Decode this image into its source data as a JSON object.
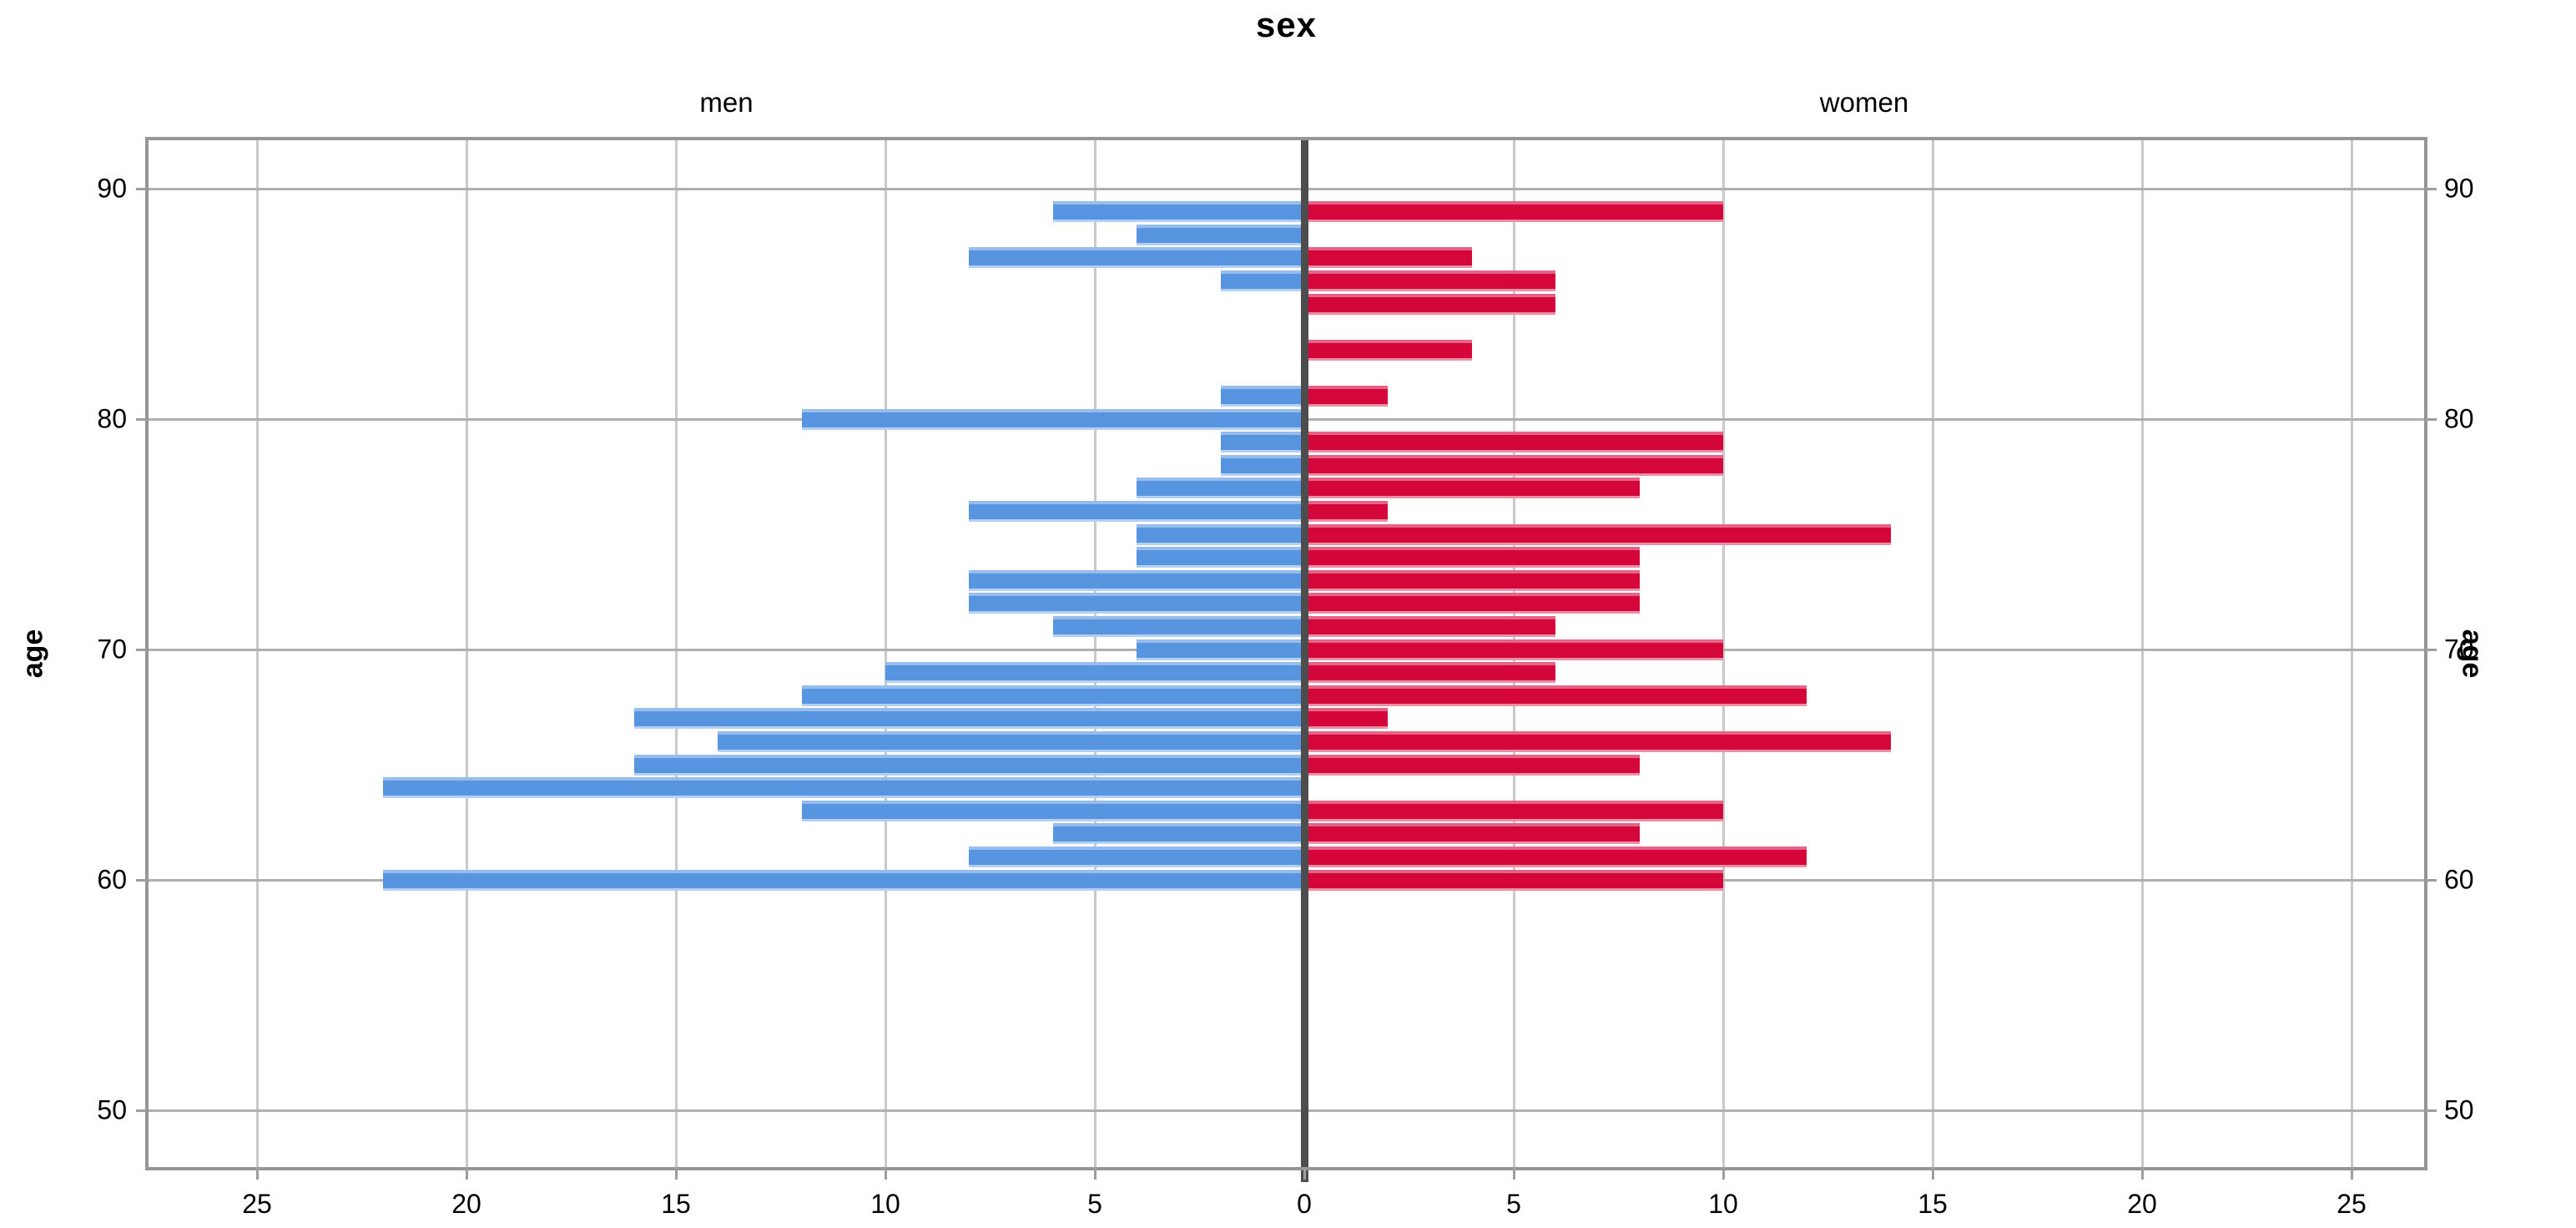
{
  "chart_data": {
    "type": "bar",
    "variant": "population-pyramid",
    "title": "sex",
    "groups": [
      {
        "key": "men",
        "label": "men",
        "color": "#5795E0"
      },
      {
        "key": "women",
        "label": "women",
        "color": "#D5063A"
      }
    ],
    "ylabel_left": "age",
    "ylabel_right": "age",
    "xlabel": "",
    "ages": [
      60,
      61,
      62,
      63,
      64,
      65,
      66,
      67,
      68,
      69,
      70,
      71,
      72,
      73,
      74,
      75,
      76,
      77,
      78,
      79,
      80,
      81,
      82,
      83,
      84,
      85,
      86,
      87,
      88,
      89
    ],
    "series": [
      {
        "name": "men",
        "values": [
          22,
          8,
          6,
          12,
          22,
          16,
          14,
          16,
          12,
          10,
          4,
          6,
          8,
          8,
          4,
          4,
          8,
          4,
          2,
          2,
          12,
          2,
          0,
          0,
          0,
          0,
          2,
          8,
          4,
          6
        ]
      },
      {
        "name": "women",
        "values": [
          10,
          12,
          8,
          10,
          0,
          8,
          14,
          2,
          12,
          6,
          10,
          6,
          8,
          8,
          8,
          14,
          2,
          8,
          10,
          10,
          0,
          2,
          0,
          4,
          0,
          6,
          6,
          4,
          0,
          10
        ]
      }
    ],
    "x_tick_values_per_side": [
      5,
      10,
      15,
      20,
      25
    ],
    "x_tick_zero_label": "0",
    "x_tick_labels_left": [
      "25",
      "20",
      "15",
      "10",
      "5"
    ],
    "x_tick_labels_right": [
      "5",
      "10",
      "15",
      "20",
      "25"
    ],
    "y_ticks": [
      "50",
      "60",
      "70",
      "80",
      "90"
    ],
    "y_tick_values": [
      50,
      60,
      70,
      80,
      90
    ],
    "axis_ranges": {
      "count_per_side": [
        0,
        27
      ],
      "age": [
        47.5,
        92
      ]
    },
    "grid": {
      "vertical_every": 5,
      "horizontal_every": 10
    },
    "legend_position": "none",
    "colors": {
      "men_bar": "#5795E0",
      "women_bar": "#D5063A",
      "center_line": "#4d4d4d",
      "frame": "#969696",
      "decade_gridline": "#afafaf",
      "count_gridline": "#c9c9c9",
      "background": "#ffffff",
      "text": "#000000"
    }
  }
}
